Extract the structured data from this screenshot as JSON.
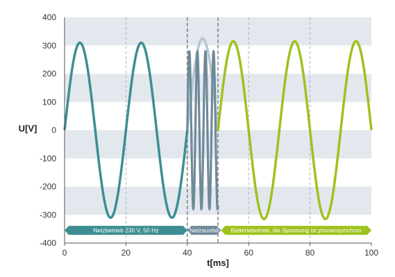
{
  "chart_data": {
    "type": "line",
    "xlabel": "t[ms]",
    "ylabel": "U[V]",
    "xlim": [
      0,
      100
    ],
    "ylim": [
      -400,
      400
    ],
    "x_ticks": [
      "0",
      "20",
      "40",
      "60",
      "80",
      "100"
    ],
    "y_ticks": [
      "400",
      "300",
      "200",
      "100",
      "0",
      "-100",
      "-200",
      "-300",
      "-400"
    ],
    "grid": "horizontal stripes",
    "colors": {
      "grid_stripe": "#e3e8ee",
      "netzbetrieb": "#3d8e93",
      "netzausfall": "#6f8a99",
      "netzausfall_ghost": "#b8c6cf",
      "batteriebetrieb": "#9dc21e",
      "phase_marker": "#555555"
    },
    "series": [
      {
        "key": "netzbetrieb",
        "kind": "sine",
        "amplitude": 310,
        "period_ms": 20,
        "x_start": 0,
        "x_end": 40
      },
      {
        "key": "netzausfall_ghost",
        "kind": "sine",
        "amplitude": 325,
        "period_ms": 20,
        "x_start": 40,
        "x_end": 50
      },
      {
        "key": "netzausfall",
        "kind": "sine_burst",
        "amplitude": 280,
        "frequency_hz": 380,
        "x_start": 40,
        "x_end": 50
      },
      {
        "key": "batteriebetrieb",
        "kind": "sine",
        "amplitude": 315,
        "period_ms": 20,
        "x_start": 50,
        "x_end": 100
      }
    ],
    "phase_markers_x": [
      40,
      50
    ],
    "gridline_x": [
      20,
      60,
      80
    ],
    "phases": [
      {
        "label": "Netzbetrieb 230 V, 50 Hz",
        "x_start": 0,
        "x_end": 40,
        "color_key": "netzbetrieb"
      },
      {
        "label": "Netzausfall",
        "x_start": 40,
        "x_end": 51,
        "color_key": "netzausfall"
      },
      {
        "label": "Batteriebetrieb, die Spannung ist phasensynchron",
        "x_start": 51,
        "x_end": 100,
        "color_key": "batteriebetrieb"
      }
    ]
  }
}
